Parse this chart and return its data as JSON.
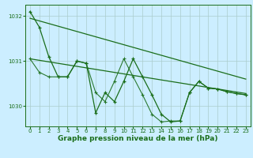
{
  "background_color": "#cceeff",
  "grid_color": "#aacccc",
  "line_color": "#1a6e1a",
  "xlabel": "Graphe pression niveau de la mer (hPa)",
  "xlabel_fontsize": 6.5,
  "xlim": [
    -0.5,
    23.5
  ],
  "ylim": [
    1029.55,
    1032.25
  ],
  "yticks": [
    1030,
    1031,
    1032
  ],
  "ytick_labels": [
    "1030",
    "1031",
    "1032"
  ],
  "xticks": [
    0,
    1,
    2,
    3,
    4,
    5,
    6,
    7,
    8,
    9,
    10,
    11,
    12,
    13,
    14,
    15,
    16,
    17,
    18,
    19,
    20,
    21,
    22,
    23
  ],
  "tick_fontsize": 5.0,
  "series1": {
    "x": [
      0,
      1,
      2,
      3,
      4,
      5,
      6,
      7,
      8,
      9,
      10,
      11,
      12,
      13,
      14,
      15,
      16,
      17,
      18,
      19,
      20,
      21,
      22,
      23
    ],
    "y": [
      1032.1,
      1031.75,
      1031.1,
      1030.65,
      1030.65,
      1031.0,
      1030.95,
      1029.85,
      1030.3,
      1030.1,
      1030.55,
      1031.05,
      1030.65,
      1030.25,
      1029.82,
      1029.65,
      1029.67,
      1030.3,
      1030.55,
      1030.4,
      1030.38,
      1030.32,
      1030.28,
      1030.25
    ]
  },
  "series2_linear": {
    "x": [
      0,
      23
    ],
    "y": [
      1031.95,
      1030.6
    ]
  },
  "series3": {
    "x": [
      0,
      1,
      2,
      3,
      4,
      5,
      6,
      7,
      8,
      9,
      10,
      11,
      12,
      13,
      14,
      15,
      16,
      17,
      18,
      19,
      20,
      21,
      22,
      23
    ],
    "y": [
      1031.05,
      1030.75,
      1030.65,
      1030.65,
      1030.65,
      1031.0,
      1030.95,
      1030.3,
      1030.1,
      1030.55,
      1031.05,
      1030.65,
      1030.25,
      1029.82,
      1029.65,
      1029.67,
      1029.67,
      1030.3,
      1030.55,
      1030.4,
      1030.38,
      1030.32,
      1030.28,
      1030.25
    ]
  },
  "series4_linear": {
    "x": [
      0,
      23
    ],
    "y": [
      1031.05,
      1030.28
    ]
  }
}
